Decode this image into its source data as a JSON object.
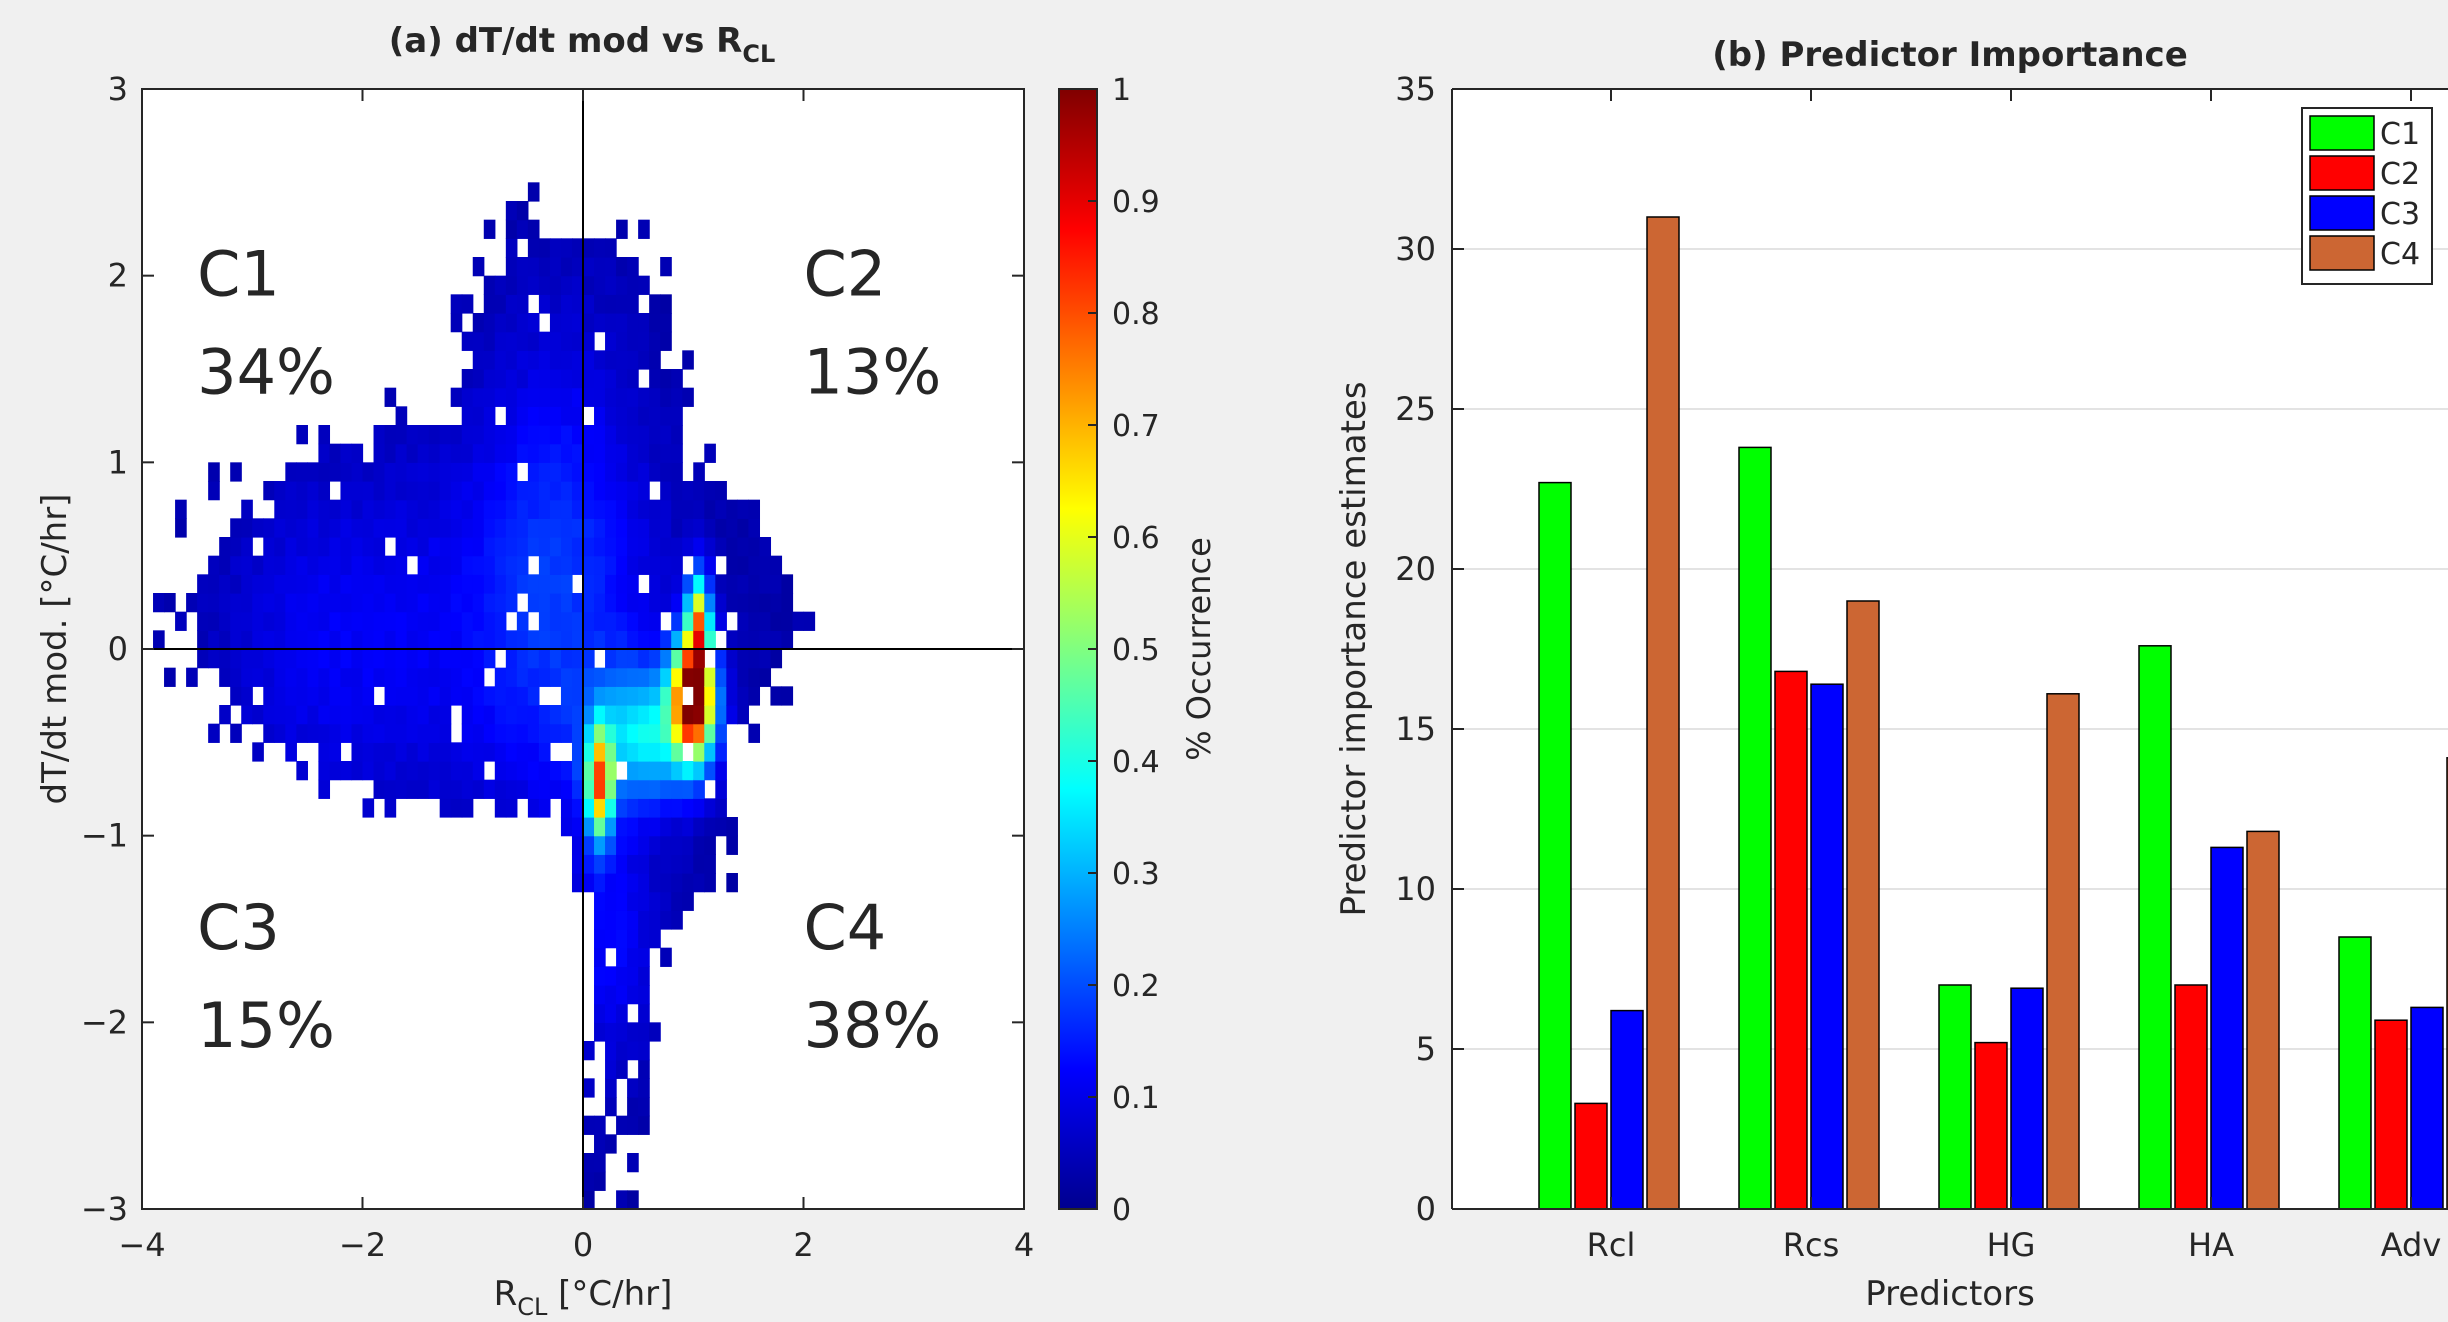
{
  "chart_data": [
    {
      "type": "heatmap",
      "title_main": "(a) dT/dt mod vs R",
      "title_sub": "CL",
      "xlabel_main": "R",
      "xlabel_sub": "CL",
      "xlabel_unit": " [°C/hr]",
      "ylabel": "dT/dt mod. [°C/hr]",
      "xlim": [
        -4,
        4
      ],
      "ylim": [
        -3,
        3
      ],
      "xticks": [
        "−4",
        "−2",
        "0",
        "2",
        "4"
      ],
      "xtick_values": [
        -4,
        -2,
        0,
        2,
        4
      ],
      "yticks": [
        "−3",
        "−2",
        "−1",
        "0",
        "1",
        "2",
        "3"
      ],
      "ytick_values": [
        -3,
        -2,
        -1,
        0,
        1,
        2,
        3
      ],
      "quadrants": [
        {
          "name": "C1",
          "pct": "34%",
          "x": -3.5,
          "y": 2.0
        },
        {
          "name": "C2",
          "pct": "13%",
          "x": 2.0,
          "y": 2.0
        },
        {
          "name": "C3",
          "pct": "15%",
          "x": -3.5,
          "y": -1.5
        },
        {
          "name": "C4",
          "pct": "38%",
          "x": 2.0,
          "y": -1.5
        }
      ],
      "colorbar": {
        "label": "% Occurrence",
        "range": [
          0,
          1
        ],
        "ticks": [
          "0",
          "0.1",
          "0.2",
          "0.3",
          "0.4",
          "0.5",
          "0.6",
          "0.7",
          "0.8",
          "0.9",
          "1"
        ]
      },
      "density_hotspots": [
        {
          "x": 1.0,
          "y": -0.3,
          "value": 0.95
        },
        {
          "x": 1.05,
          "y": 0.1,
          "value": 0.9
        },
        {
          "x": 0.15,
          "y": -0.75,
          "value": 0.65
        }
      ]
    },
    {
      "type": "bar",
      "title": "(b) Predictor Importance",
      "xlabel": "Predictors",
      "ylabel": "Predictor importance estimates",
      "ylim": [
        0,
        35
      ],
      "yticks": [
        "0",
        "5",
        "10",
        "15",
        "20",
        "25",
        "30",
        "35"
      ],
      "ytick_values": [
        0,
        5,
        10,
        15,
        20,
        25,
        30,
        35
      ],
      "grid": true,
      "legend_position": "top-right",
      "categories": [
        "Rcl",
        "Rcs",
        "HG",
        "HA",
        "Adv"
      ],
      "series": [
        {
          "name": "C1",
          "color": "#00ff00",
          "values": [
            22.7,
            23.8,
            7.0,
            17.6,
            8.5
          ]
        },
        {
          "name": "C2",
          "color": "#ff0000",
          "values": [
            3.3,
            16.8,
            5.2,
            7.0,
            5.9
          ]
        },
        {
          "name": "C3",
          "color": "#0000ff",
          "values": [
            6.2,
            16.4,
            6.9,
            11.3,
            6.3
          ]
        },
        {
          "name": "C4",
          "color": "#cc6633",
          "values": [
            31.0,
            19.0,
            16.1,
            11.8,
            14.1
          ]
        }
      ]
    }
  ]
}
